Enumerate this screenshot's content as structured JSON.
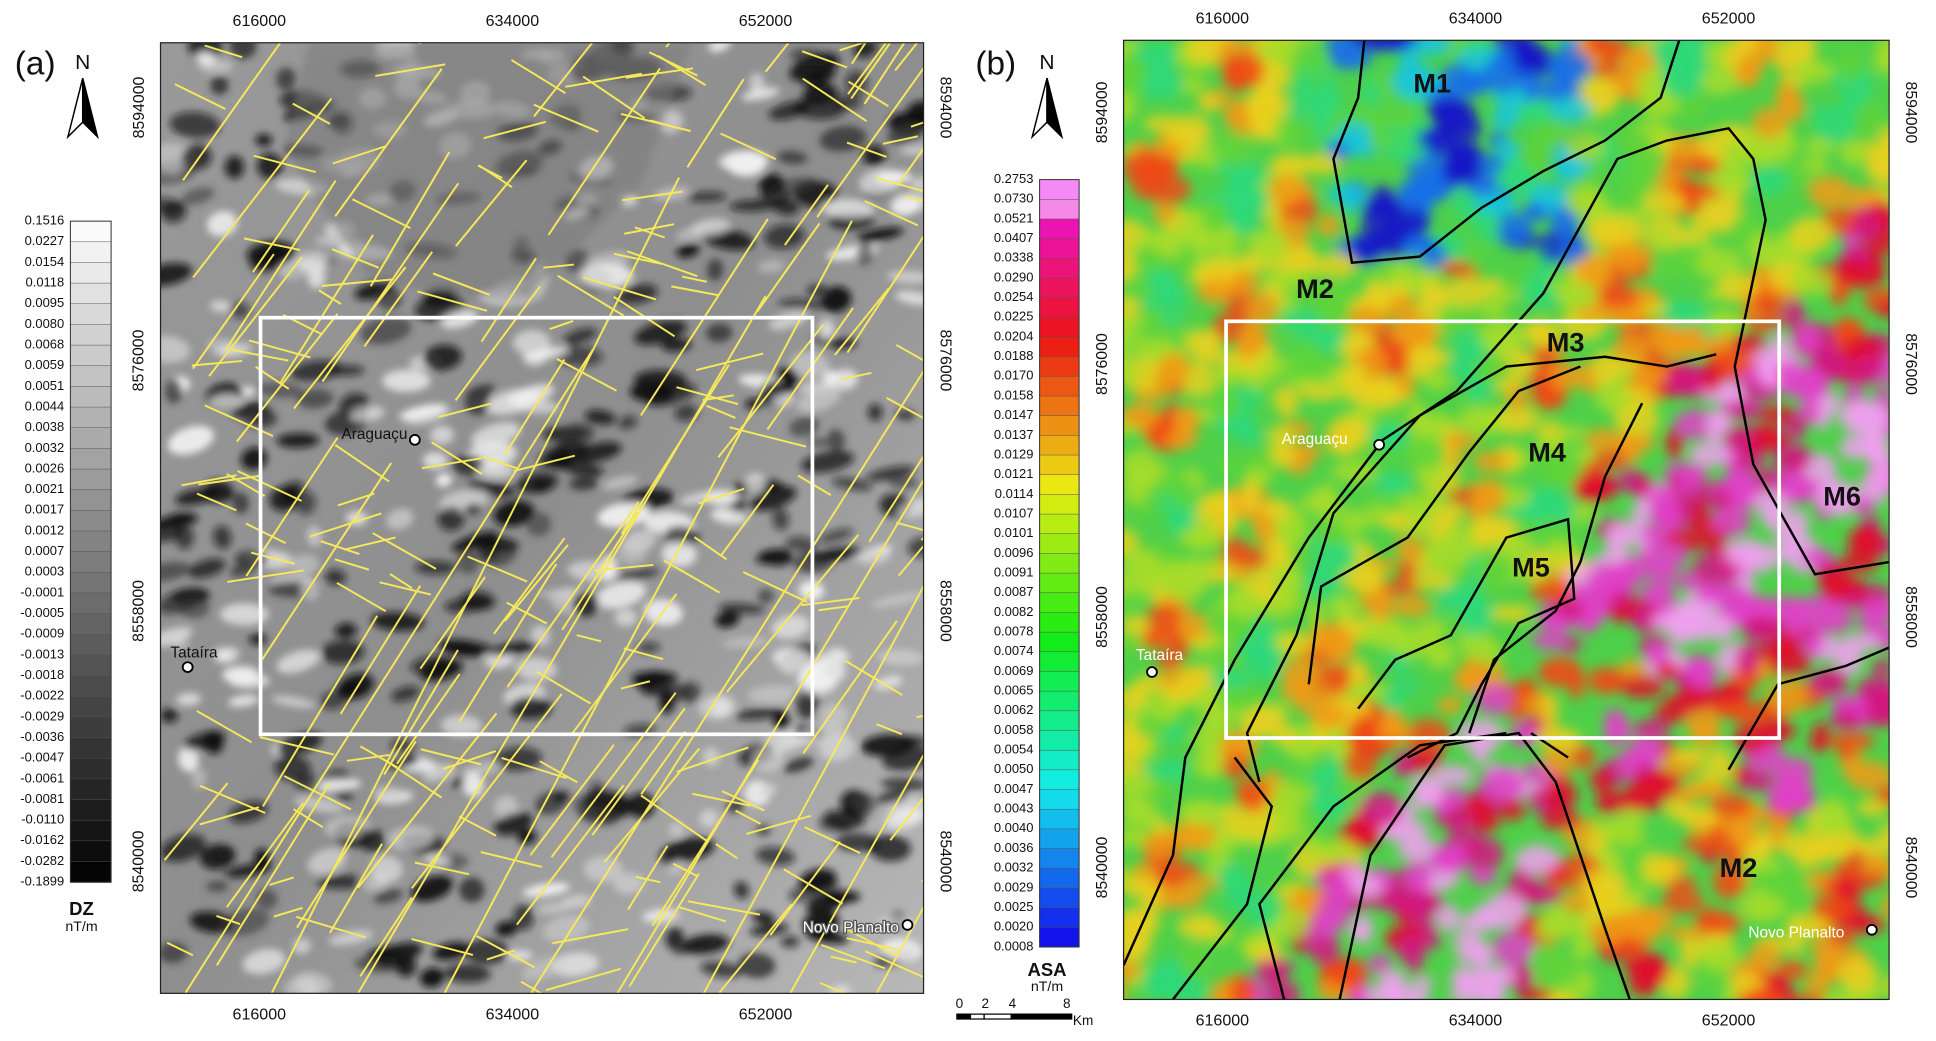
{
  "panels": [
    {
      "label": "(a)",
      "north": "N",
      "x_ticks": [
        "616000",
        "634000",
        "652000"
      ],
      "y_ticks": [
        "8594000",
        "8576000",
        "8558000",
        "8540000"
      ],
      "places": [
        "Araguaçu",
        "Tataíra",
        "Novo Planalto"
      ],
      "legend": {
        "title": "DZ",
        "unit": "nT/m",
        "labels": [
          "0.1516",
          "0.0227",
          "0.0154",
          "0.0118",
          "0.0095",
          "0.0080",
          "0.0068",
          "0.0059",
          "0.0051",
          "0.0044",
          "0.0038",
          "0.0032",
          "0.0026",
          "0.0021",
          "0.0017",
          "0.0012",
          "0.0007",
          "0.0003",
          "-0.0001",
          "-0.0005",
          "-0.0009",
          "-0.0013",
          "-0.0018",
          "-0.0022",
          "-0.0029",
          "-0.0036",
          "-0.0047",
          "-0.0061",
          "-0.0081",
          "-0.0110",
          "-0.0162",
          "-0.0282",
          "-0.1899"
        ]
      }
    },
    {
      "label": "(b)",
      "north": "N",
      "x_ticks": [
        "616000",
        "634000",
        "652000"
      ],
      "y_ticks": [
        "8594000",
        "8576000",
        "8558000",
        "8540000"
      ],
      "places": [
        "Araguaçu",
        "Tataíra",
        "Novo Planalto"
      ],
      "domains": [
        "M1",
        "M2",
        "M3",
        "M4",
        "M5",
        "M6",
        "M2"
      ],
      "legend": {
        "title": "ASA",
        "unit": "nT/m",
        "labels": [
          "0.2753",
          "0.0730",
          "0.0521",
          "0.0407",
          "0.0338",
          "0.0290",
          "0.0254",
          "0.0225",
          "0.0204",
          "0.0188",
          "0.0170",
          "0.0158",
          "0.0147",
          "0.0137",
          "0.0129",
          "0.0121",
          "0.0114",
          "0.0107",
          "0.0101",
          "0.0096",
          "0.0091",
          "0.0087",
          "0.0082",
          "0.0078",
          "0.0074",
          "0.0069",
          "0.0065",
          "0.0062",
          "0.0058",
          "0.0054",
          "0.0050",
          "0.0047",
          "0.0043",
          "0.0040",
          "0.0036",
          "0.0032",
          "0.0029",
          "0.0025",
          "0.0020",
          "0.0008"
        ]
      }
    }
  ],
  "scale_bar": {
    "labels": [
      "0",
      "2",
      "4",
      "8"
    ],
    "unit": "Km"
  }
}
